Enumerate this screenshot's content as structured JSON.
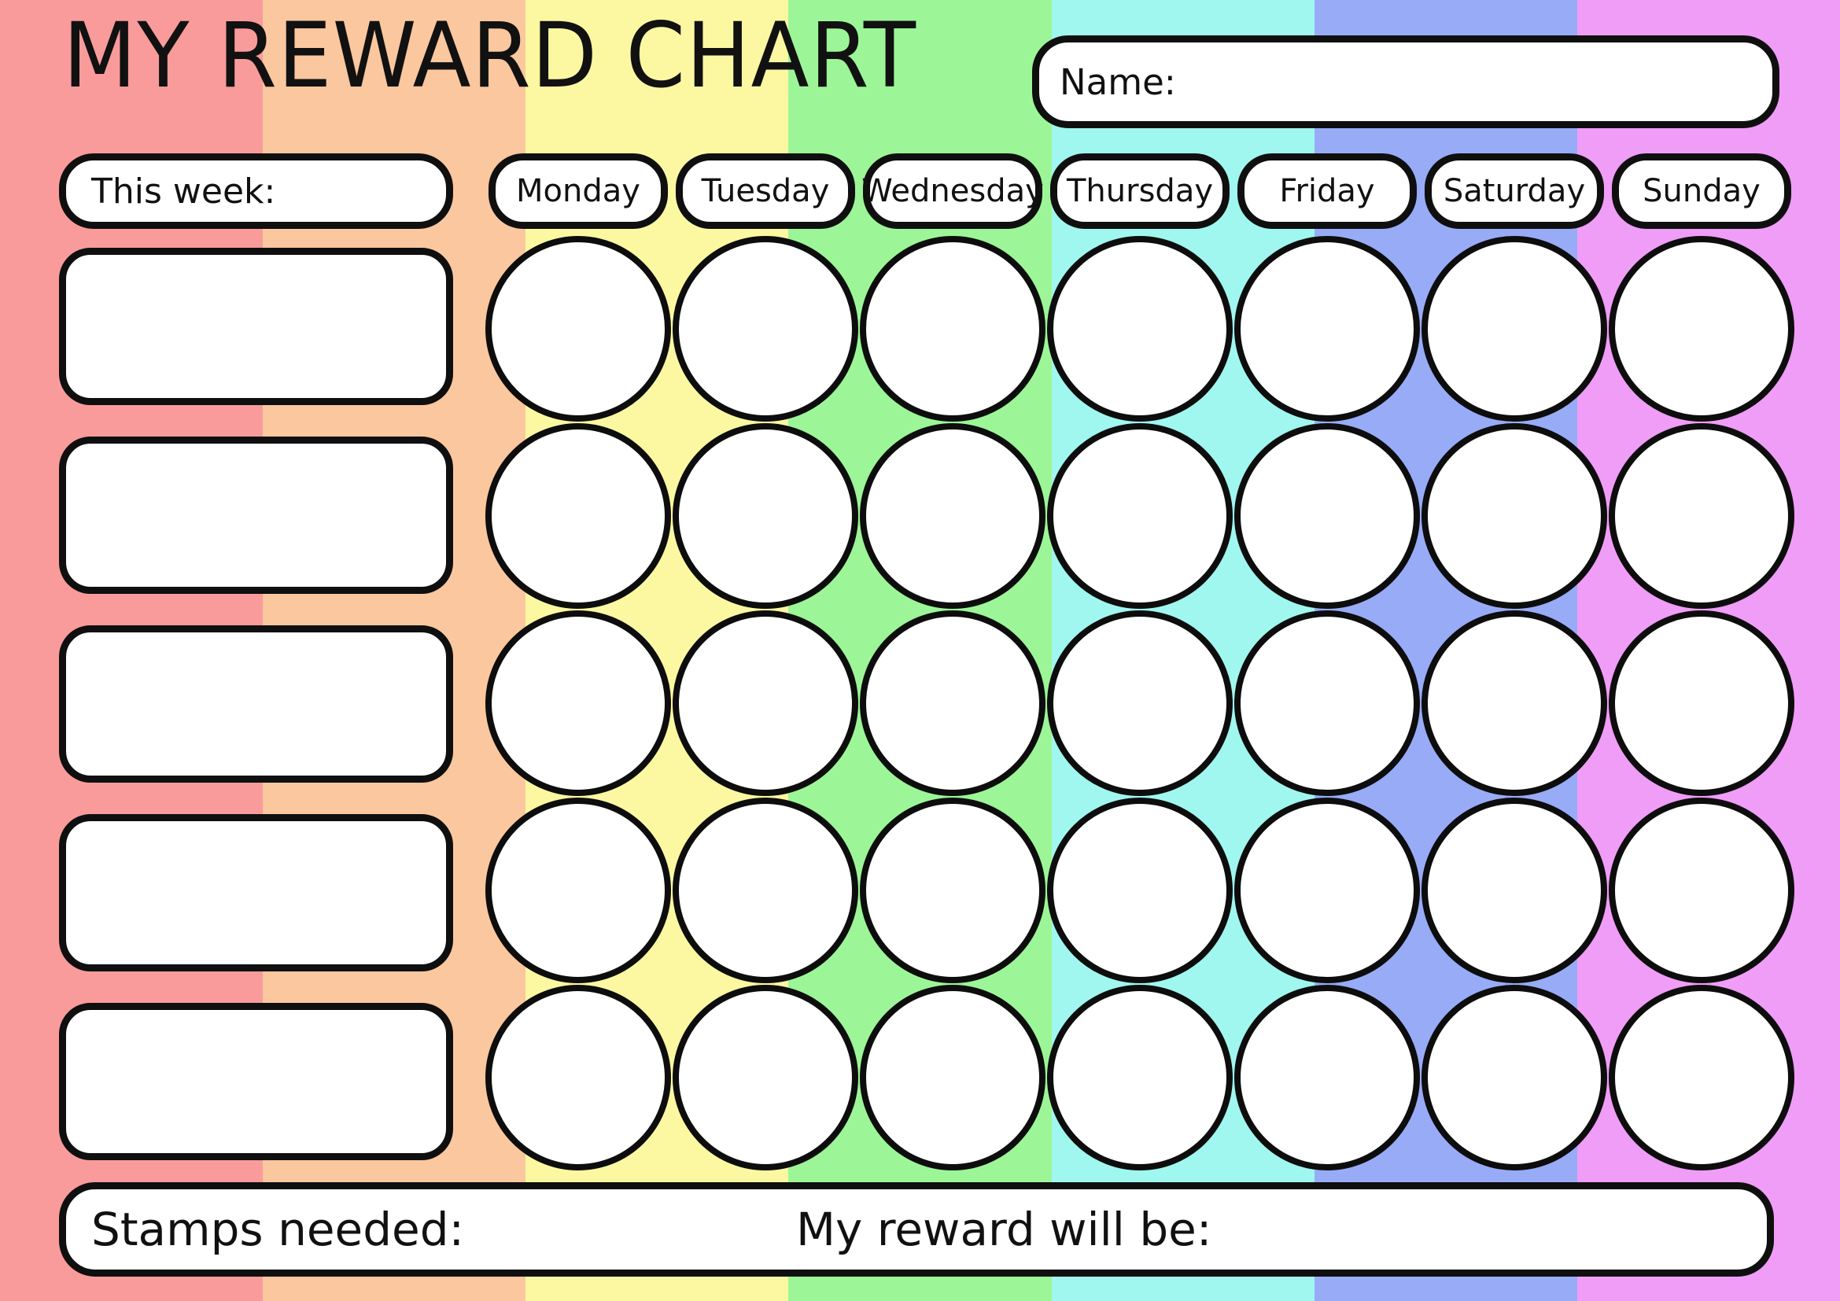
{
  "title": "MY REWARD CHART",
  "background": {
    "stripes": [
      {
        "name": "red",
        "hex": "#f99b9b"
      },
      {
        "name": "orange",
        "hex": "#fbc79e"
      },
      {
        "name": "yellow",
        "hex": "#fcf8a2"
      },
      {
        "name": "green",
        "hex": "#9cf697"
      },
      {
        "name": "cyan",
        "hex": "#a0f7ef"
      },
      {
        "name": "blue",
        "hex": "#98abf6"
      },
      {
        "name": "purple",
        "hex": "#f09df7"
      }
    ]
  },
  "colors": {
    "box_fill": "#ffffff",
    "outline": "#0f0f0f",
    "text": "#111111"
  },
  "name_field": {
    "label": "Name:",
    "value": ""
  },
  "header": {
    "week_label": "This week:",
    "week_value": "",
    "days": [
      "Monday",
      "Tuesday",
      "Wednesday",
      "Thursday",
      "Friday",
      "Saturday",
      "Sunday"
    ]
  },
  "tasks": [
    "",
    "",
    "",
    "",
    ""
  ],
  "grid": {
    "rows": 5,
    "columns": 7,
    "stamp_state": "empty"
  },
  "footer": {
    "stamps_needed_label": "Stamps needed:",
    "stamps_needed_value": "",
    "reward_label": "My reward will be:",
    "reward_value": ""
  }
}
